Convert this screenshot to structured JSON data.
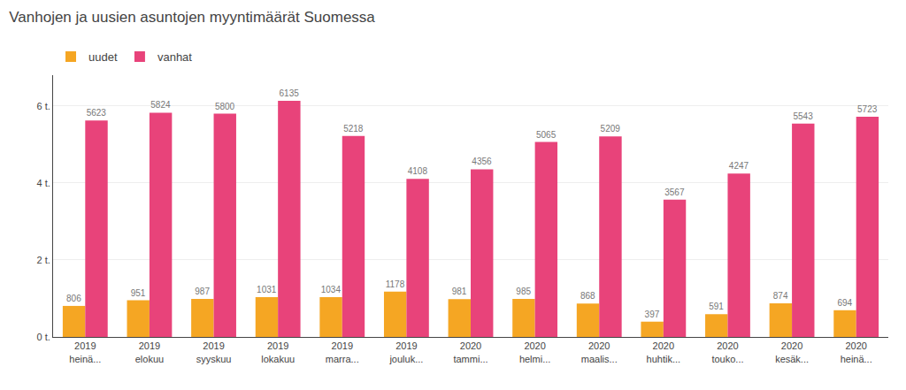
{
  "chart_data": {
    "type": "bar",
    "title": "Vanhojen ja uusien asuntojen myyntimäärät Suomessa",
    "categories": [
      "2019\nheinä...",
      "2019\nelokuu",
      "2019\nsyyskuu",
      "2019\nlokakuu",
      "2019\nmarra...",
      "2019\njouluk...",
      "2020\ntammi...",
      "2020\nhelmi...",
      "2020\nmaalis...",
      "2020\nhuhtik...",
      "2020\ntouko...",
      "2020\nkesäk...",
      "2020\nheinä..."
    ],
    "series": [
      {
        "name": "uudet",
        "color": "#F5A623",
        "values": [
          806,
          951,
          987,
          1031,
          1034,
          1178,
          981,
          985,
          868,
          397,
          591,
          874,
          694
        ]
      },
      {
        "name": "vanhat",
        "color": "#E8437A",
        "values": [
          5623,
          5824,
          5800,
          6135,
          5218,
          4108,
          4356,
          5065,
          5209,
          3567,
          4247,
          5543,
          5723
        ]
      }
    ],
    "ylim": [
      0,
      6800
    ],
    "yticks": [
      {
        "value": 0,
        "label": "0 t."
      },
      {
        "value": 2000,
        "label": "2 t."
      },
      {
        "value": 4000,
        "label": "4 t."
      },
      {
        "value": 6000,
        "label": "6 t."
      }
    ],
    "grid": true,
    "legend": "upper left",
    "data_labels": true
  }
}
